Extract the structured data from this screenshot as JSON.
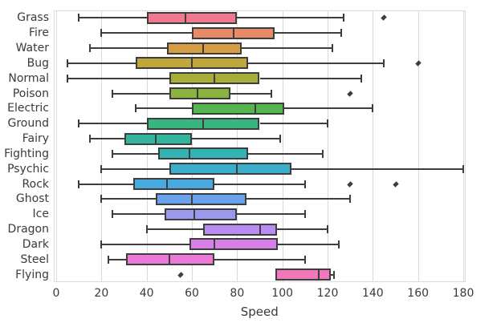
{
  "chart_data": {
    "type": "box",
    "orientation": "horizontal",
    "title": "",
    "xlabel": "Speed",
    "ylabel": "",
    "xlim": [
      -1.5,
      181
    ],
    "xticks": [
      0,
      20,
      40,
      60,
      80,
      100,
      120,
      140,
      160,
      180
    ],
    "grid": "vertical",
    "legend": "none",
    "line_color": "#3d3d3d",
    "grid_color": "#d9d9d9",
    "text_color": "#3a3a3a",
    "series": [
      {
        "label": "Grass",
        "color": "#f0798e",
        "whisker_low": 10,
        "q1": 40,
        "median": 57,
        "q3": 80,
        "whisker_high": 127,
        "outliers": [
          145
        ]
      },
      {
        "label": "Fire",
        "color": "#e78a67",
        "whisker_low": 20,
        "q1": 60,
        "median": 78.5,
        "q3": 96.5,
        "whisker_high": 126,
        "outliers": []
      },
      {
        "label": "Water",
        "color": "#d69c43",
        "whisker_low": 15,
        "q1": 49,
        "median": 65,
        "q3": 82,
        "whisker_high": 122,
        "outliers": []
      },
      {
        "label": "Bug",
        "color": "#bfa73c",
        "whisker_low": 5,
        "q1": 35,
        "median": 60,
        "q3": 85,
        "whisker_high": 145,
        "outliers": [
          160
        ]
      },
      {
        "label": "Normal",
        "color": "#a7ad39",
        "whisker_low": 5,
        "q1": 50,
        "median": 70,
        "q3": 90,
        "whisker_high": 135,
        "outliers": []
      },
      {
        "label": "Poison",
        "color": "#8ab43d",
        "whisker_low": 25,
        "q1": 50,
        "median": 62.5,
        "q3": 77,
        "whisker_high": 95,
        "outliers": [
          130
        ]
      },
      {
        "label": "Electric",
        "color": "#55b54e",
        "whisker_low": 35,
        "q1": 60,
        "median": 88,
        "q3": 101,
        "whisker_high": 140,
        "outliers": []
      },
      {
        "label": "Ground",
        "color": "#3ab57d",
        "whisker_low": 10,
        "q1": 40,
        "median": 65,
        "q3": 90,
        "whisker_high": 120,
        "outliers": []
      },
      {
        "label": "Fairy",
        "color": "#35b49e",
        "whisker_low": 15,
        "q1": 30,
        "median": 44,
        "q3": 60,
        "whisker_high": 99,
        "outliers": []
      },
      {
        "label": "Fighting",
        "color": "#34b3b4",
        "whisker_low": 25,
        "q1": 45,
        "median": 59,
        "q3": 85,
        "whisker_high": 118,
        "outliers": []
      },
      {
        "label": "Psychic",
        "color": "#3aaecb",
        "whisker_low": 20,
        "q1": 50,
        "median": 80,
        "q3": 104,
        "whisker_high": 180,
        "outliers": []
      },
      {
        "label": "Rock",
        "color": "#47a9de",
        "whisker_low": 10,
        "q1": 34,
        "median": 49,
        "q3": 70,
        "whisker_high": 110,
        "outliers": [
          130,
          150
        ]
      },
      {
        "label": "Ghost",
        "color": "#6aa3eb",
        "whisker_low": 20,
        "q1": 44,
        "median": 60,
        "q3": 84,
        "whisker_high": 130,
        "outliers": []
      },
      {
        "label": "Ice",
        "color": "#9a99f0",
        "whisker_low": 25,
        "q1": 48,
        "median": 61,
        "q3": 80,
        "whisker_high": 110,
        "outliers": []
      },
      {
        "label": "Dragon",
        "color": "#bb8cf0",
        "whisker_low": 40,
        "q1": 65,
        "median": 90,
        "q3": 97.5,
        "whisker_high": 120,
        "outliers": []
      },
      {
        "label": "Dark",
        "color": "#d880ea",
        "whisker_low": 20,
        "q1": 59,
        "median": 70,
        "q3": 98,
        "whisker_high": 125,
        "outliers": []
      },
      {
        "label": "Steel",
        "color": "#e97ad8",
        "whisker_low": 23,
        "q1": 31,
        "median": 50,
        "q3": 70,
        "whisker_high": 110,
        "outliers": []
      },
      {
        "label": "Flying",
        "color": "#f377bb",
        "whisker_low": null,
        "q1": 97,
        "median": 116,
        "q3": 121.5,
        "whisker_high": 123,
        "outliers": [
          55
        ]
      }
    ]
  }
}
